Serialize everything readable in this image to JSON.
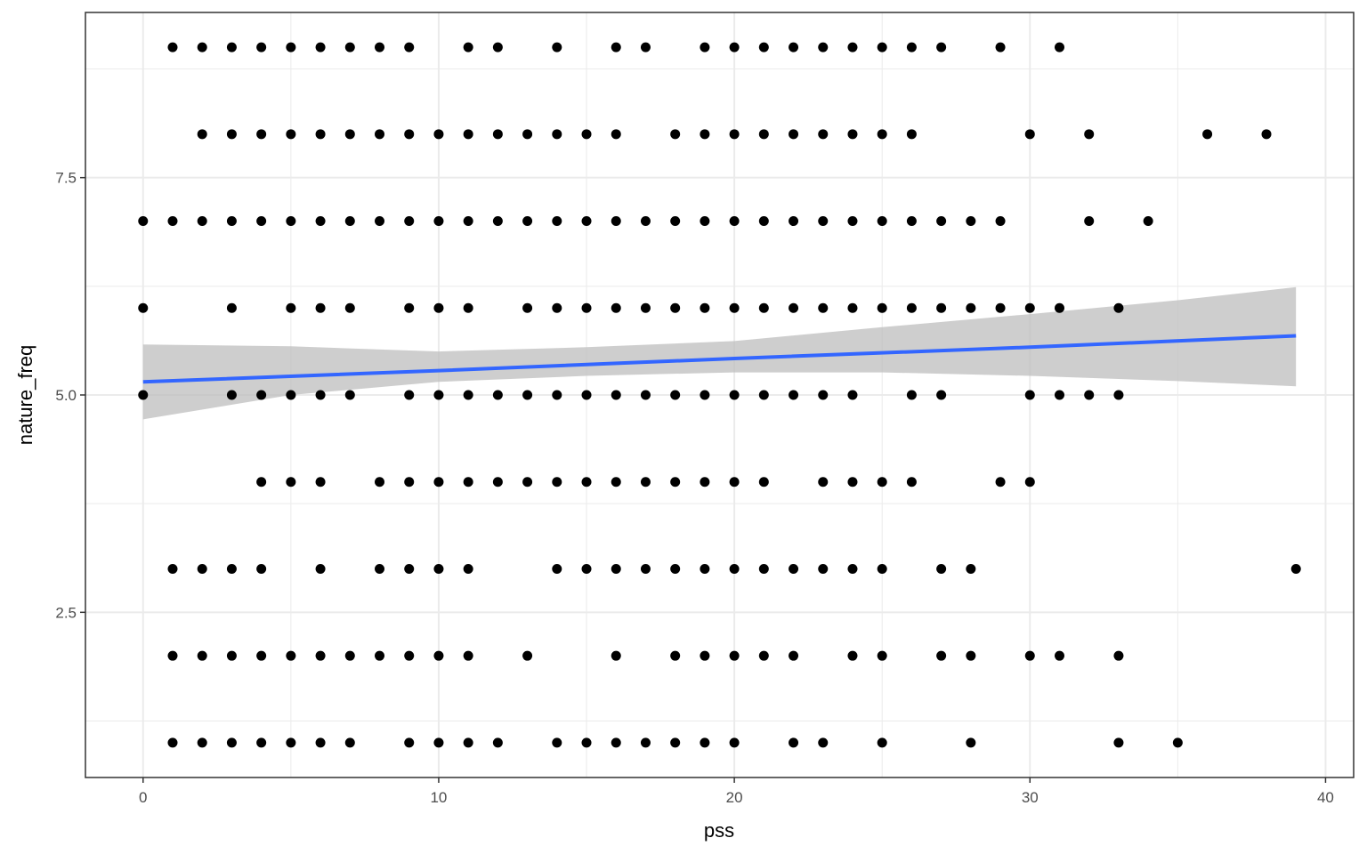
{
  "chart_data": {
    "type": "scatter",
    "title": "",
    "xlabel": "pss",
    "ylabel": "nature_freq",
    "xlim": [
      -1.95,
      40.95
    ],
    "ylim": [
      0.6,
      9.4
    ],
    "x_ticks": [
      0,
      10,
      20,
      30,
      40
    ],
    "x_tick_labels": [
      "0",
      "10",
      "20",
      "30",
      "40"
    ],
    "y_ticks": [
      2.5,
      5.0,
      7.5
    ],
    "y_tick_labels": [
      "2.5",
      "5.0",
      "7.5"
    ],
    "grid": true,
    "legend": "none",
    "colors": {
      "points": "#000000",
      "fit_line": "#3366ff",
      "confidence_band": "#bebebe",
      "grid": "#ebebeb",
      "panel_border": "#333333"
    },
    "series": [
      {
        "y": 9,
        "x": [
          1,
          2,
          3,
          4,
          5,
          6,
          7,
          8,
          9,
          11,
          12,
          14,
          16,
          17,
          19,
          20,
          21,
          22,
          23,
          24,
          25,
          26,
          27,
          29,
          31
        ]
      },
      {
        "y": 8,
        "x": [
          2,
          3,
          4,
          5,
          6,
          7,
          8,
          9,
          10,
          11,
          12,
          13,
          14,
          15,
          16,
          18,
          19,
          20,
          21,
          22,
          23,
          24,
          25,
          26,
          30,
          32,
          36,
          38
        ]
      },
      {
        "y": 7,
        "x": [
          0,
          1,
          2,
          3,
          4,
          5,
          6,
          7,
          8,
          9,
          10,
          11,
          12,
          13,
          14,
          15,
          16,
          17,
          18,
          19,
          20,
          21,
          22,
          23,
          24,
          25,
          26,
          27,
          28,
          29,
          32,
          34
        ]
      },
      {
        "y": 6,
        "x": [
          0,
          3,
          5,
          6,
          7,
          9,
          10,
          11,
          13,
          14,
          15,
          16,
          17,
          18,
          19,
          20,
          21,
          22,
          23,
          24,
          25,
          26,
          27,
          28,
          29,
          30,
          31,
          33
        ]
      },
      {
        "y": 5,
        "x": [
          0,
          3,
          4,
          5,
          6,
          7,
          9,
          10,
          11,
          12,
          13,
          14,
          15,
          16,
          17,
          18,
          19,
          20,
          21,
          22,
          23,
          24,
          26,
          27,
          30,
          31,
          32,
          33
        ]
      },
      {
        "y": 4,
        "x": [
          4,
          5,
          6,
          8,
          9,
          10,
          11,
          12,
          13,
          14,
          15,
          16,
          17,
          18,
          19,
          20,
          21,
          23,
          24,
          25,
          26,
          29,
          30
        ]
      },
      {
        "y": 3,
        "x": [
          1,
          2,
          3,
          4,
          6,
          8,
          9,
          10,
          11,
          14,
          15,
          16,
          17,
          18,
          19,
          20,
          21,
          22,
          23,
          24,
          25,
          27,
          28,
          39
        ]
      },
      {
        "y": 2,
        "x": [
          1,
          2,
          3,
          4,
          5,
          6,
          7,
          8,
          9,
          10,
          11,
          13,
          16,
          18,
          19,
          20,
          21,
          22,
          24,
          25,
          27,
          28,
          30,
          31,
          33
        ]
      },
      {
        "y": 1,
        "x": [
          1,
          2,
          3,
          4,
          5,
          6,
          7,
          9,
          10,
          11,
          12,
          14,
          15,
          16,
          17,
          18,
          19,
          20,
          22,
          23,
          25,
          28,
          33,
          35
        ]
      }
    ],
    "regression": {
      "method": "lm",
      "x_range": [
        0,
        39
      ],
      "fit": [
        [
          0,
          5.15
        ],
        [
          10,
          5.28
        ],
        [
          20,
          5.42
        ],
        [
          30,
          5.55
        ],
        [
          39,
          5.68
        ]
      ],
      "ci_lower": [
        [
          0,
          4.72
        ],
        [
          5,
          5.0
        ],
        [
          10,
          5.15
        ],
        [
          15,
          5.22
        ],
        [
          20,
          5.26
        ],
        [
          25,
          5.26
        ],
        [
          30,
          5.22
        ],
        [
          35,
          5.16
        ],
        [
          39,
          5.1
        ]
      ],
      "ci_upper": [
        [
          0,
          5.58
        ],
        [
          5,
          5.56
        ],
        [
          10,
          5.5
        ],
        [
          15,
          5.55
        ],
        [
          20,
          5.62
        ],
        [
          25,
          5.78
        ],
        [
          30,
          5.93
        ],
        [
          35,
          6.09
        ],
        [
          39,
          6.24
        ]
      ]
    }
  }
}
